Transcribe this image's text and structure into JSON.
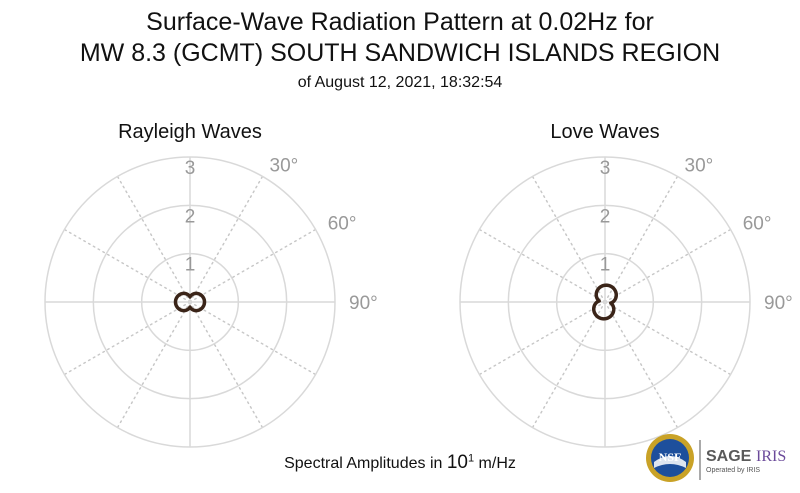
{
  "header": {
    "title_line1": "Surface-Wave Radiation Pattern at 0.02Hz for",
    "title_line2": "MW 8.3 (GCMT) SOUTH SANDWICH ISLANDS REGION",
    "subtitle": "of August 12, 2021, 18:32:54"
  },
  "footer": {
    "amplitude_prefix": "Spectral Amplitudes in ",
    "amplitude_base": "10",
    "amplitude_exp": "1",
    "amplitude_unit": " m/Hz"
  },
  "logo": {
    "nsf_text": "NSF",
    "sage_text": "SAGE",
    "iris_text": "IRIS",
    "operated_text": "Operated by IRIS"
  },
  "colors": {
    "pattern": "#3a2418",
    "grid": "#d9d9d9",
    "spoke": "#c8c8c8",
    "tick_label": "#999999"
  },
  "chart_data": [
    {
      "type": "polar",
      "title": "Rayleigh Waves",
      "rlim": [
        0,
        3
      ],
      "radial_ticks": [
        1,
        2,
        3
      ],
      "angular_tick_labels": [
        "30°",
        "60°",
        "90°"
      ],
      "angular_ticks_deg": [
        30,
        60,
        90
      ],
      "grid": true,
      "pattern": "two-lobe",
      "lobe_axis_deg": 90,
      "max_amplitude": 0.3
    },
    {
      "type": "polar",
      "title": "Love Waves",
      "rlim": [
        0,
        3
      ],
      "radial_ticks": [
        1,
        2,
        3
      ],
      "angular_tick_labels": [
        "30°",
        "60°",
        "90°"
      ],
      "angular_ticks_deg": [
        30,
        60,
        90
      ],
      "grid": true,
      "pattern": "two-lobe",
      "lobe_axis_deg": 10,
      "max_amplitude": 0.35
    }
  ]
}
